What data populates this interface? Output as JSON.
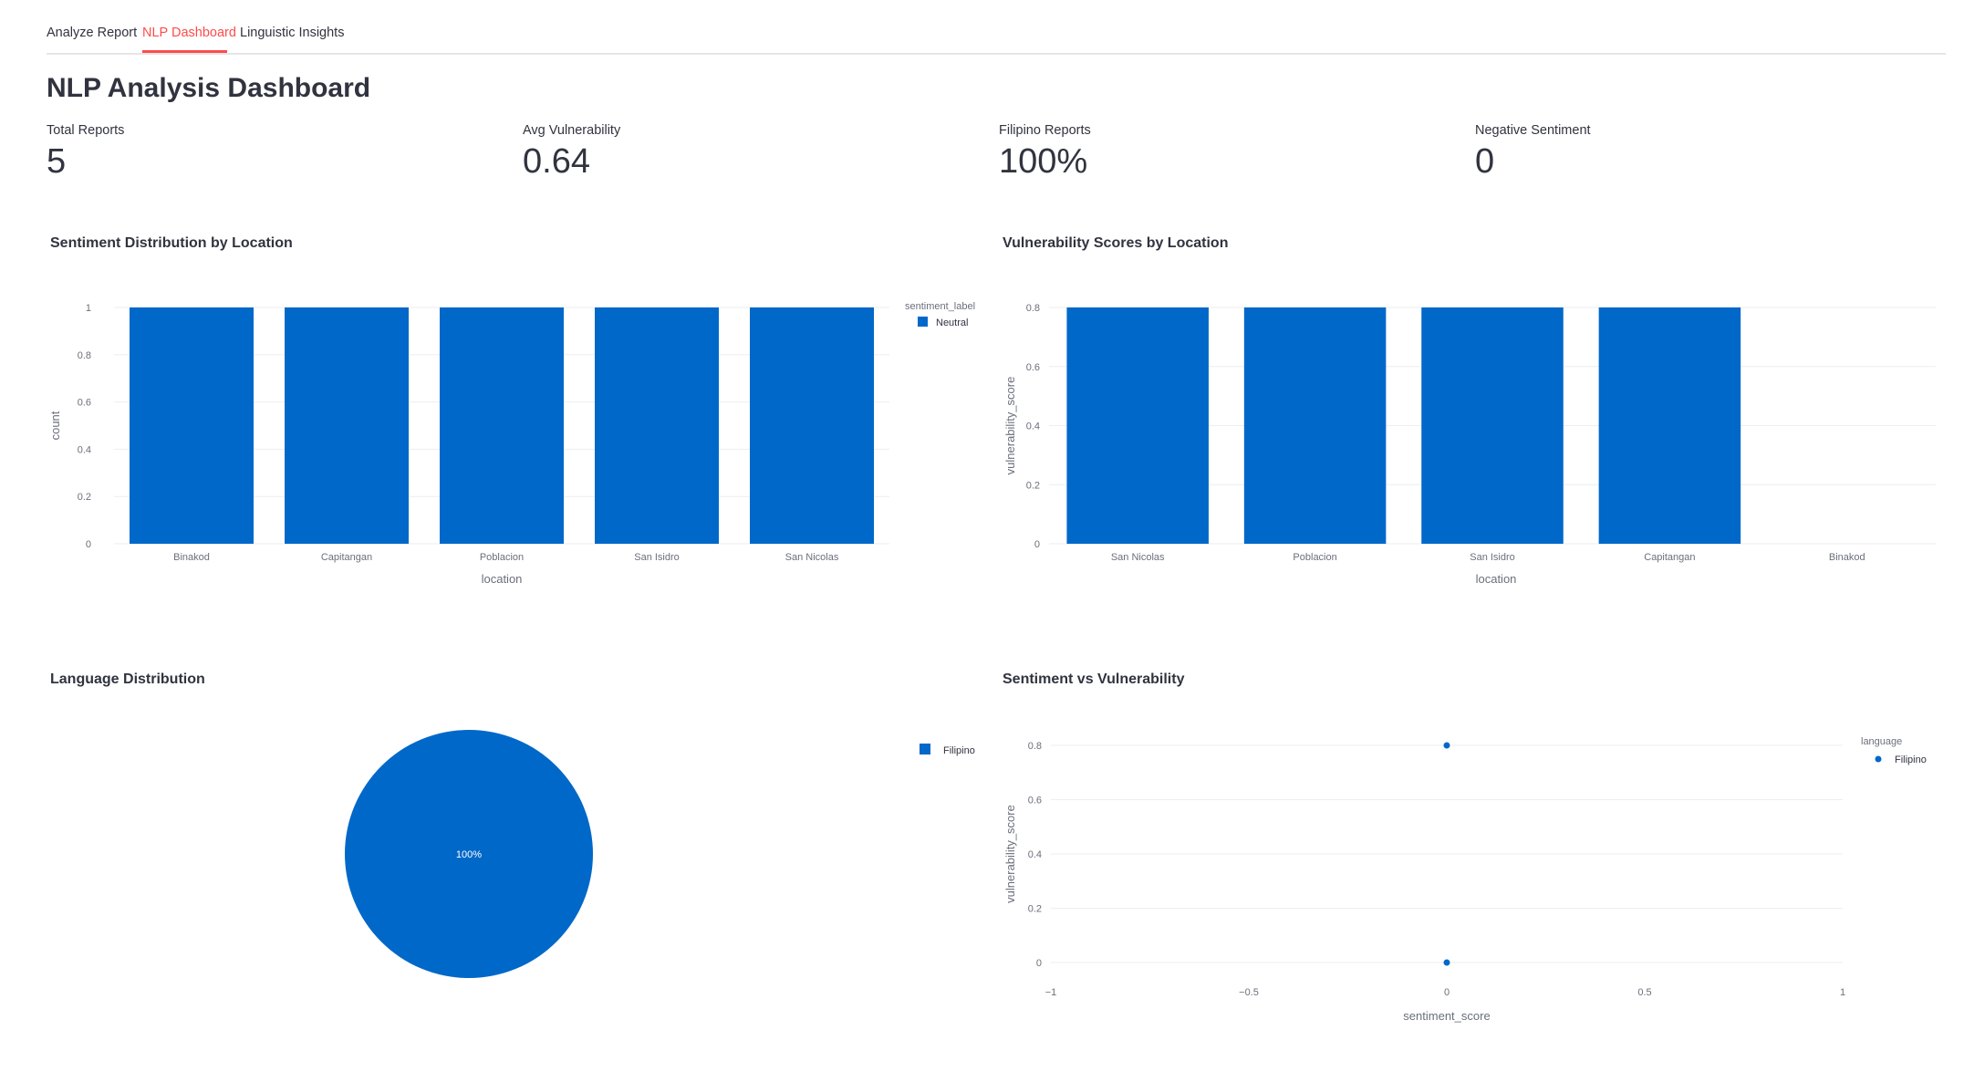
{
  "tabs": [
    {
      "label": "Analyze Report"
    },
    {
      "label": "NLP Dashboard"
    },
    {
      "label": "Linguistic Insights"
    }
  ],
  "page_title": "NLP Analysis Dashboard",
  "metrics": [
    {
      "label": "Total Reports",
      "value": "5"
    },
    {
      "label": "Avg Vulnerability",
      "value": "0.64"
    },
    {
      "label": "Filipino Reports",
      "value": "100%"
    },
    {
      "label": "Negative Sentiment",
      "value": "0"
    }
  ],
  "colors": {
    "accent": "#ff4b4b",
    "series": "#0068c9",
    "text": "#31333f",
    "tick": "#6b6f7b",
    "grid": "#eceef1"
  },
  "chart_data": [
    {
      "type": "bar",
      "title": "Sentiment Distribution by Location",
      "categories": [
        "Binakod",
        "Capitangan",
        "Poblacion",
        "San Isidro",
        "San Nicolas"
      ],
      "series": [
        {
          "name": "Neutral",
          "values": [
            1,
            1,
            1,
            1,
            1
          ]
        }
      ],
      "xlabel": "location",
      "ylabel": "count",
      "ylim": [
        0,
        1
      ],
      "yticks": [
        0,
        0.2,
        0.4,
        0.6,
        0.8,
        1
      ],
      "legend_title": "sentiment_label",
      "legend_position": "top-right",
      "grid": true
    },
    {
      "type": "bar",
      "title": "Vulnerability Scores by Location",
      "categories": [
        "San Nicolas",
        "Poblacion",
        "San Isidro",
        "Capitangan",
        "Binakod"
      ],
      "values": [
        0.8,
        0.8,
        0.8,
        0.8,
        0
      ],
      "xlabel": "location",
      "ylabel": "vulnerability_score",
      "ylim": [
        0,
        0.8
      ],
      "yticks": [
        0,
        0.2,
        0.4,
        0.6,
        0.8
      ],
      "grid": true
    },
    {
      "type": "pie",
      "title": "Language Distribution",
      "slices": [
        {
          "label": "Filipino",
          "value": 100,
          "text": "100%"
        }
      ],
      "legend_position": "top-right"
    },
    {
      "type": "scatter",
      "title": "Sentiment vs Vulnerability",
      "series": [
        {
          "name": "Filipino",
          "points": [
            {
              "x": 0,
              "y": 0.8
            },
            {
              "x": 0,
              "y": 0
            }
          ]
        }
      ],
      "xlabel": "sentiment_score",
      "ylabel": "vulnerability_score",
      "xlim": [
        -1,
        1
      ],
      "ylim": [
        0,
        0.8
      ],
      "xticks": [
        "−1",
        "−0.5",
        "0",
        "0.5",
        "1"
      ],
      "xtick_values": [
        -1,
        -0.5,
        0,
        0.5,
        1
      ],
      "yticks": [
        0,
        0.2,
        0.4,
        0.6,
        0.8
      ],
      "legend_title": "language",
      "legend_position": "top-right",
      "grid": true
    }
  ]
}
